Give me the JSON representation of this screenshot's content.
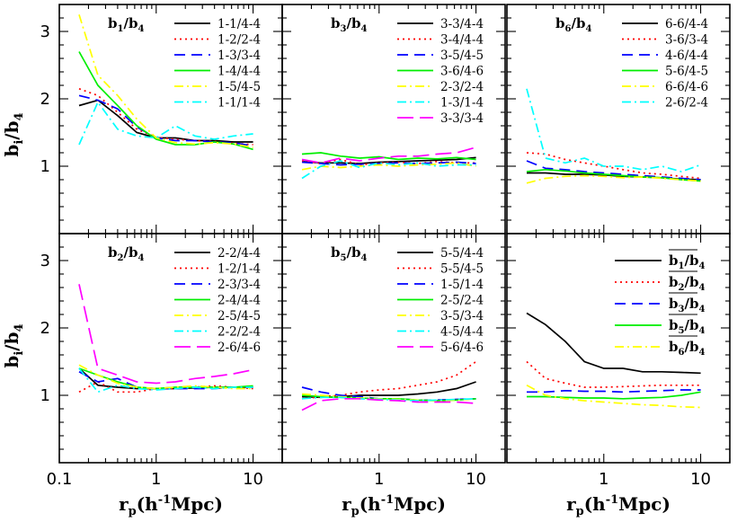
{
  "figure": {
    "ylabel": "b_i/b_4",
    "xlabel": "r_p(h^-1Mpc)",
    "ytick_labels": [
      "1",
      "2",
      "3"
    ],
    "xtick_labels": [
      "0.1",
      "1",
      "10"
    ]
  },
  "styles": [
    {
      "color": "#000000",
      "dash": ""
    },
    {
      "color": "#ff0000",
      "dash": "2,4"
    },
    {
      "color": "#0000ff",
      "dash": "12,7"
    },
    {
      "color": "#00ee00",
      "dash": ""
    },
    {
      "color": "#ffff00",
      "dash": "10,4,2,4"
    },
    {
      "color": "#00ffff",
      "dash": "10,4,2,4"
    },
    {
      "color": "#ff00ff",
      "dash": "18,7"
    }
  ],
  "chart_data": [
    {
      "type": "line",
      "title": "b1/b4",
      "title_parts": {
        "a": "b",
        "i": "1",
        "b": "b",
        "j": "4"
      },
      "xscale": "log",
      "xlim": [
        0.1,
        20
      ],
      "ylim": [
        0,
        3.4
      ],
      "x": [
        0.16,
        0.25,
        0.4,
        0.63,
        1.0,
        1.58,
        2.51,
        3.98,
        6.31,
        10.0
      ],
      "series": [
        {
          "name": "1-1/4-4",
          "values": [
            1.9,
            1.98,
            1.75,
            1.5,
            1.42,
            1.42,
            1.38,
            1.38,
            1.36,
            1.36
          ]
        },
        {
          "name": "1-2/2-4",
          "values": [
            2.15,
            2.05,
            1.8,
            1.55,
            1.43,
            1.4,
            1.38,
            1.37,
            1.34,
            1.32
          ]
        },
        {
          "name": "1-3/3-4",
          "values": [
            2.05,
            1.98,
            1.85,
            1.58,
            1.42,
            1.38,
            1.38,
            1.36,
            1.35,
            1.3
          ]
        },
        {
          "name": "1-4/4-4",
          "values": [
            2.7,
            2.2,
            1.9,
            1.6,
            1.4,
            1.32,
            1.32,
            1.36,
            1.33,
            1.25
          ]
        },
        {
          "name": "1-5/4-5",
          "values": [
            3.25,
            2.35,
            2.05,
            1.7,
            1.42,
            1.35,
            1.33,
            1.35,
            1.33,
            1.28
          ]
        },
        {
          "name": "1-1/1-4",
          "values": [
            1.32,
            1.95,
            1.55,
            1.45,
            1.42,
            1.6,
            1.45,
            1.4,
            1.45,
            1.48
          ]
        }
      ]
    },
    {
      "type": "line",
      "title": "b3/b4",
      "title_parts": {
        "a": "b",
        "i": "3",
        "b": "b",
        "j": "4"
      },
      "xscale": "log",
      "xlim": [
        0.1,
        20
      ],
      "ylim": [
        0,
        3.4
      ],
      "x": [
        0.16,
        0.25,
        0.4,
        0.63,
        1.0,
        1.58,
        2.51,
        3.98,
        6.31,
        10.0
      ],
      "series": [
        {
          "name": "3-3/4-4",
          "values": [
            1.07,
            1.05,
            1.05,
            1.04,
            1.06,
            1.07,
            1.08,
            1.09,
            1.1,
            1.13
          ]
        },
        {
          "name": "3-4/4-4",
          "values": [
            1.08,
            1.04,
            1.1,
            1.02,
            1.05,
            1.06,
            1.04,
            1.07,
            1.05,
            1.05
          ]
        },
        {
          "name": "3-5/4-5",
          "values": [
            1.06,
            1.04,
            1.02,
            1.03,
            1.04,
            1.05,
            1.04,
            1.05,
            1.06,
            1.04
          ]
        },
        {
          "name": "3-6/4-6",
          "values": [
            1.18,
            1.2,
            1.15,
            1.12,
            1.14,
            1.1,
            1.12,
            1.11,
            1.13,
            1.1
          ]
        },
        {
          "name": "2-3/2-4",
          "values": [
            0.95,
            1.0,
            0.98,
            1.0,
            1.02,
            1.0,
            1.02,
            1.03,
            1.05,
            1.0
          ]
        },
        {
          "name": "1-3/1-4",
          "values": [
            0.82,
            1.0,
            1.08,
            0.98,
            1.05,
            1.02,
            1.05,
            1.0,
            1.02,
            1.02
          ]
        },
        {
          "name": "3-3/3-4",
          "values": [
            1.1,
            1.05,
            1.12,
            1.08,
            1.12,
            1.15,
            1.15,
            1.18,
            1.2,
            1.28
          ]
        }
      ]
    },
    {
      "type": "line",
      "title": "b6/b4",
      "title_parts": {
        "a": "b",
        "i": "6",
        "b": "b",
        "j": "4"
      },
      "xscale": "log",
      "xlim": [
        0.1,
        20
      ],
      "ylim": [
        0,
        3.4
      ],
      "x": [
        0.16,
        0.25,
        0.4,
        0.63,
        1.0,
        1.58,
        2.51,
        3.98,
        6.31,
        10.0
      ],
      "series": [
        {
          "name": "6-6/4-4",
          "values": [
            0.9,
            0.9,
            0.88,
            0.88,
            0.87,
            0.85,
            0.84,
            0.83,
            0.81,
            0.8
          ]
        },
        {
          "name": "3-6/3-4",
          "values": [
            1.2,
            1.18,
            1.1,
            1.05,
            1.0,
            0.95,
            0.9,
            0.88,
            0.85,
            0.82
          ]
        },
        {
          "name": "4-6/4-4",
          "values": [
            1.08,
            0.97,
            0.95,
            0.92,
            0.9,
            0.88,
            0.86,
            0.84,
            0.82,
            0.8
          ]
        },
        {
          "name": "5-6/4-5",
          "values": [
            0.92,
            0.95,
            0.93,
            0.9,
            0.88,
            0.86,
            0.84,
            0.83,
            0.8,
            0.78
          ]
        },
        {
          "name": "6-6/4-6",
          "values": [
            0.75,
            0.82,
            0.85,
            0.86,
            0.85,
            0.83,
            0.84,
            0.82,
            0.8,
            0.78
          ]
        },
        {
          "name": "2-6/2-4",
          "values": [
            2.15,
            1.12,
            1.05,
            1.12,
            1.0,
            1.0,
            0.95,
            1.0,
            0.92,
            1.02
          ]
        }
      ]
    },
    {
      "type": "line",
      "title": "b2/b4",
      "title_parts": {
        "a": "b",
        "i": "2",
        "b": "b",
        "j": "4"
      },
      "xscale": "log",
      "xlim": [
        0.1,
        20
      ],
      "ylim": [
        0,
        3.4
      ],
      "x": [
        0.16,
        0.25,
        0.4,
        0.63,
        1.0,
        1.58,
        2.51,
        3.98,
        6.31,
        10.0
      ],
      "series": [
        {
          "name": "2-2/4-4",
          "values": [
            1.4,
            1.15,
            1.12,
            1.1,
            1.1,
            1.1,
            1.11,
            1.12,
            1.12,
            1.12
          ]
        },
        {
          "name": "1-2/1-4",
          "values": [
            1.05,
            1.2,
            1.05,
            1.05,
            1.1,
            1.1,
            1.12,
            1.14,
            1.12,
            1.1
          ]
        },
        {
          "name": "2-3/3-4",
          "values": [
            1.35,
            1.2,
            1.25,
            1.12,
            1.1,
            1.1,
            1.1,
            1.1,
            1.12,
            1.12
          ]
        },
        {
          "name": "2-4/4-4",
          "values": [
            1.4,
            1.3,
            1.2,
            1.12,
            1.1,
            1.12,
            1.12,
            1.12,
            1.12,
            1.14
          ]
        },
        {
          "name": "2-5/4-5",
          "values": [
            1.45,
            1.3,
            1.18,
            1.12,
            1.1,
            1.12,
            1.14,
            1.12,
            1.1,
            1.1
          ]
        },
        {
          "name": "2-2/2-4",
          "values": [
            1.4,
            1.05,
            1.15,
            1.1,
            1.08,
            1.1,
            1.12,
            1.1,
            1.12,
            1.12
          ]
        },
        {
          "name": "2-6/4-6",
          "values": [
            2.65,
            1.4,
            1.3,
            1.2,
            1.18,
            1.2,
            1.25,
            1.28,
            1.32,
            1.38
          ]
        }
      ]
    },
    {
      "type": "line",
      "title": "b5/b4",
      "title_parts": {
        "a": "b",
        "i": "5",
        "b": "b",
        "j": "4"
      },
      "xscale": "log",
      "xlim": [
        0.1,
        20
      ],
      "ylim": [
        0,
        3.4
      ],
      "x": [
        0.16,
        0.25,
        0.4,
        0.63,
        1.0,
        1.58,
        2.51,
        3.98,
        6.31,
        10.0
      ],
      "series": [
        {
          "name": "5-5/4-4",
          "values": [
            0.98,
            0.97,
            0.98,
            1.0,
            1.0,
            1.0,
            1.02,
            1.05,
            1.1,
            1.2
          ]
        },
        {
          "name": "5-5/4-5",
          "values": [
            0.95,
            0.98,
            1.0,
            1.05,
            1.08,
            1.1,
            1.15,
            1.2,
            1.3,
            1.5
          ]
        },
        {
          "name": "1-5/1-4",
          "values": [
            1.12,
            1.05,
            1.0,
            0.98,
            0.95,
            0.95,
            0.93,
            0.93,
            0.94,
            0.95
          ]
        },
        {
          "name": "2-5/2-4",
          "values": [
            1.0,
            0.98,
            0.97,
            0.96,
            0.95,
            0.95,
            0.93,
            0.92,
            0.93,
            0.95
          ]
        },
        {
          "name": "3-5/3-4",
          "values": [
            1.02,
            1.0,
            0.98,
            0.96,
            0.95,
            0.94,
            0.93,
            0.92,
            0.93,
            0.95
          ]
        },
        {
          "name": "4-5/4-4",
          "values": [
            0.95,
            0.97,
            0.97,
            0.95,
            0.94,
            0.93,
            0.92,
            0.93,
            0.94,
            0.95
          ]
        },
        {
          "name": "5-6/4-6",
          "values": [
            0.78,
            0.92,
            0.95,
            0.95,
            0.93,
            0.92,
            0.9,
            0.9,
            0.9,
            0.88
          ]
        }
      ]
    },
    {
      "type": "line",
      "title": "",
      "xscale": "log",
      "xlim": [
        0.1,
        20
      ],
      "ylim": [
        0,
        3.4
      ],
      "x": [
        0.16,
        0.25,
        0.4,
        0.63,
        1.0,
        1.58,
        2.51,
        3.98,
        6.31,
        10.0
      ],
      "legend_bar": true,
      "series": [
        {
          "name": "b1/b4",
          "parts": {
            "a": "b",
            "i": "1",
            "b": "b",
            "j": "4"
          },
          "style": 0,
          "values": [
            2.22,
            2.05,
            1.8,
            1.5,
            1.4,
            1.4,
            1.35,
            1.35,
            1.34,
            1.33
          ]
        },
        {
          "name": "b2/b4",
          "parts": {
            "a": "b",
            "i": "2",
            "b": "b",
            "j": "4"
          },
          "style": 1,
          "values": [
            1.5,
            1.25,
            1.18,
            1.12,
            1.12,
            1.13,
            1.14,
            1.15,
            1.15,
            1.15
          ]
        },
        {
          "name": "b3/b4",
          "parts": {
            "a": "b",
            "i": "3",
            "b": "b",
            "j": "4"
          },
          "style": 2,
          "values": [
            1.05,
            1.05,
            1.07,
            1.06,
            1.06,
            1.05,
            1.06,
            1.07,
            1.08,
            1.08
          ]
        },
        {
          "name": "b5/b4",
          "parts": {
            "a": "b",
            "i": "5",
            "b": "b",
            "j": "4"
          },
          "style": 3,
          "values": [
            0.98,
            0.98,
            0.97,
            0.96,
            0.96,
            0.95,
            0.96,
            0.97,
            1.0,
            1.05
          ]
        },
        {
          "name": "b6/b4",
          "parts": {
            "a": "b",
            "i": "6",
            "b": "b",
            "j": "4"
          },
          "style": 4,
          "values": [
            1.15,
            1.0,
            0.95,
            0.92,
            0.9,
            0.88,
            0.86,
            0.85,
            0.83,
            0.82
          ]
        }
      ]
    }
  ]
}
